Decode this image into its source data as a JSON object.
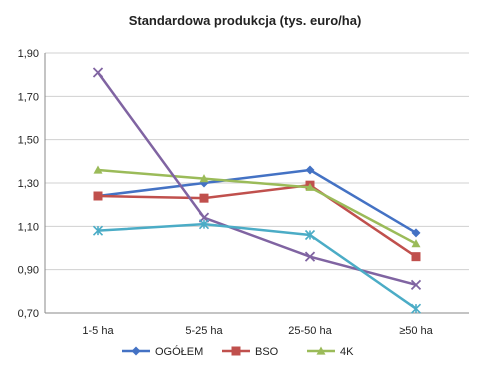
{
  "chart_data": {
    "type": "line",
    "title": "Standardowa produkcja (tys. euro/ha)",
    "xlabel": "",
    "ylabel": "",
    "categories": [
      "1-5 ha",
      "5-25 ha",
      "25-50 ha",
      "≥50 ha"
    ],
    "ylim": [
      0.7,
      1.9
    ],
    "yticks": [
      "0,70",
      "0,90",
      "1,10",
      "1,30",
      "1,50",
      "1,70",
      "1,90"
    ],
    "grid": true,
    "legend_position": "bottom",
    "series": [
      {
        "name": "OGÓŁEM",
        "color": "#4472C4",
        "marker": "diamond",
        "values": [
          1.24,
          1.3,
          1.36,
          1.07
        ]
      },
      {
        "name": "BSO",
        "color": "#C0504D",
        "marker": "square",
        "values": [
          1.24,
          1.23,
          1.29,
          0.96
        ]
      },
      {
        "name": "4K",
        "color": "#9BBB59",
        "marker": "triangle",
        "values": [
          1.36,
          1.32,
          1.28,
          1.02
        ]
      },
      {
        "name": "",
        "color": "#8064A2",
        "marker": "x",
        "values": [
          1.81,
          1.14,
          0.96,
          0.83
        ]
      },
      {
        "name": "",
        "color": "#4BACC6",
        "marker": "star",
        "values": [
          1.08,
          1.11,
          1.06,
          0.72
        ]
      }
    ]
  }
}
